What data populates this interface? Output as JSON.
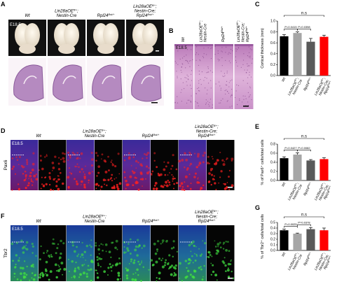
{
  "figure": {
    "panel_labels": [
      "A",
      "B",
      "C",
      "D",
      "E",
      "F",
      "G"
    ],
    "stage": "E18.5",
    "markers": [
      "Pax6",
      "Tbr2"
    ],
    "genotypes": [
      [
        [
          {
            "t": "Wt"
          }
        ]
      ],
      [
        [
          {
            "t": "Lin28aOE"
          },
          {
            "sup": "fl/+"
          },
          {
            "t": ";"
          }
        ],
        [
          {
            "t": "Nestin-Cre"
          }
        ]
      ],
      [
        [
          {
            "t": "Rpl24"
          },
          {
            "sup": "Bst/+"
          }
        ]
      ],
      [
        [
          {
            "t": "Lin28aOE"
          },
          {
            "sup": "fl/+"
          },
          {
            "t": ";"
          }
        ],
        [
          {
            "t": "Nestin-Cre;"
          }
        ],
        [
          {
            "t": "Rpl24"
          },
          {
            "sup": "Bst/+"
          }
        ]
      ]
    ]
  },
  "chart_data": [
    {
      "type": "bar",
      "ylabel": "Cortical thickness (mm)",
      "categories": [
        [
          [
            {
              "t": "Wt"
            }
          ]
        ],
        [
          [
            {
              "t": "Lin28aOE"
            },
            {
              "sup": "fl/+"
            },
            {
              "t": ";"
            }
          ],
          [
            {
              "t": "Nestin-Cre"
            }
          ]
        ],
        [
          [
            {
              "t": "Rpl24"
            },
            {
              "sup": "Bst/+"
            }
          ]
        ],
        [
          [
            {
              "t": "Lin28aOE"
            },
            {
              "sup": "fl/+"
            },
            {
              "t": ";"
            }
          ],
          [
            {
              "t": "Nestin-Cre;"
            }
          ],
          [
            {
              "t": "Rpl24"
            },
            {
              "sup": "Bst/+"
            }
          ]
        ]
      ],
      "values": [
        0.72,
        0.78,
        0.62,
        0.71
      ],
      "errors": [
        0.03,
        0.02,
        0.06,
        0.03
      ],
      "colors": [
        "#000000",
        "#a6a6a6",
        "#595959",
        "#ff0000"
      ],
      "ylim": [
        0,
        1.0
      ],
      "yticks": [
        {
          "value": 0,
          "label": "0.0"
        },
        0.2,
        0.4,
        0.6,
        0.8,
        {
          "value": 1.0,
          "label": "1.0"
        }
      ],
      "annotations": [
        "P=0.0415",
        "P=0.0398",
        "n.s"
      ]
    },
    {
      "type": "bar",
      "ylabel": "% of Pax6⁺ cells/total cells",
      "categories": [
        [
          [
            {
              "t": "Wt"
            }
          ]
        ],
        [
          [
            {
              "t": "Lin28aOE"
            },
            {
              "sup": "fl/+"
            },
            {
              "t": ";"
            }
          ],
          [
            {
              "t": "Nestin-Cre"
            }
          ]
        ],
        [
          [
            {
              "t": "Rpl24"
            },
            {
              "sup": "Bst/+"
            }
          ]
        ],
        [
          [
            {
              "t": "Lin28aOE"
            },
            {
              "sup": "fl/+"
            },
            {
              "t": ";"
            }
          ],
          [
            {
              "t": "Nestin-Cre;"
            }
          ],
          [
            {
              "t": "Rpl24"
            },
            {
              "sup": "Bst/+"
            }
          ]
        ]
      ],
      "values": [
        0.49,
        0.57,
        0.44,
        0.47
      ],
      "errors": [
        0.03,
        0.04,
        0.02,
        0.03
      ],
      "colors": [
        "#000000",
        "#a6a6a6",
        "#595959",
        "#ff0000"
      ],
      "ylim": [
        0,
        0.8
      ],
      "yticks": [
        {
          "value": 0,
          "label": "0.0"
        },
        0.2,
        0.4,
        0.6,
        0.8
      ],
      "annotations": [
        "P=0.0427",
        "P=0.0082",
        "n.s"
      ]
    },
    {
      "type": "bar",
      "ylabel": "% of Tbr2⁺ cells/total cells",
      "categories": [
        [
          [
            {
              "t": "Wt"
            }
          ]
        ],
        [
          [
            {
              "t": "Lin28aOE"
            },
            {
              "sup": "fl/+"
            },
            {
              "t": ";"
            }
          ],
          [
            {
              "t": "Nestin-Cre"
            }
          ]
        ],
        [
          [
            {
              "t": "Rpl24"
            },
            {
              "sup": "Bst/+"
            }
          ]
        ],
        [
          [
            {
              "t": "Lin28aOE"
            },
            {
              "sup": "fl/+"
            },
            {
              "t": ";"
            }
          ],
          [
            {
              "t": "Nestin-Cre;"
            }
          ],
          [
            {
              "t": "Rpl24"
            },
            {
              "sup": "Bst/+"
            }
          ]
        ]
      ],
      "values": [
        0.36,
        0.3,
        0.38,
        0.36
      ],
      "errors": [
        0.02,
        0.01,
        0.03,
        0.04
      ],
      "colors": [
        "#000000",
        "#a6a6a6",
        "#595959",
        "#ff0000"
      ],
      "ylim": [
        0,
        0.5
      ],
      "yticks": [
        {
          "value": 0,
          "label": "0.0"
        },
        0.1,
        0.2,
        0.3,
        0.4,
        0.5
      ],
      "annotations": [
        "P=0.0025",
        "P=0.0378",
        "n.s"
      ]
    }
  ]
}
